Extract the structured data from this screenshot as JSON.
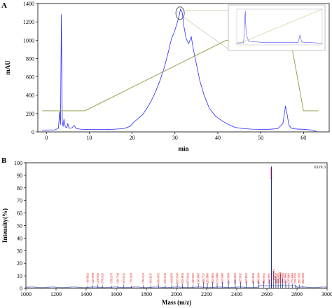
{
  "chart_data": [
    {
      "panel": "A",
      "type": "line",
      "xlabel": "min",
      "ylabel": "mAU",
      "xlim": [
        -2,
        66
      ],
      "ylim": [
        0,
        1400
      ],
      "xticks": [
        0,
        10,
        20,
        30,
        40,
        50,
        60
      ],
      "yticks": [
        0,
        200,
        400,
        600,
        800,
        1000,
        1200,
        1400
      ],
      "grid": false,
      "series": [
        {
          "role": "absorbance",
          "color": "#2a2aff",
          "x": [
            -1,
            2,
            2.8,
            3.1,
            3.3,
            3.5,
            3.7,
            3.9,
            4.1,
            4.4,
            4.8,
            5.0,
            5.3,
            6.0,
            6.5,
            7.0,
            8.0,
            10,
            12,
            14,
            16,
            18,
            19.5,
            20.5,
            21.5,
            22.5,
            23.5,
            24.5,
            25.5,
            26.5,
            27.5,
            28.5,
            29.2,
            29.8,
            30.4,
            31.0,
            31.3,
            31.7,
            32.1,
            32.6,
            33.2,
            33.8,
            34.3,
            35.0,
            35.8,
            36.8,
            38.0,
            39.5,
            41.0,
            42.5,
            44,
            46,
            48,
            50,
            52,
            54,
            55.2,
            55.8,
            56.2,
            56.6,
            57.2,
            58,
            60,
            62,
            62.5,
            63
          ],
          "values": [
            20,
            22,
            40,
            220,
            80,
            1280,
            120,
            60,
            140,
            55,
            45,
            90,
            40,
            45,
            70,
            35,
            30,
            25,
            25,
            25,
            30,
            35,
            60,
            110,
            150,
            190,
            260,
            340,
            440,
            560,
            700,
            880,
            1020,
            1080,
            1170,
            1270,
            1340,
            1300,
            1150,
            1020,
            960,
            1040,
            900,
            740,
            560,
            400,
            260,
            170,
            120,
            80,
            50,
            35,
            30,
            28,
            28,
            35,
            90,
            280,
            190,
            70,
            40,
            32,
            28,
            20,
            10,
            5
          ]
        },
        {
          "role": "gradient",
          "color": "#8c9a3c",
          "x": [
            -1,
            9,
            42,
            57,
            60,
            63.5
          ],
          "values": [
            230,
            230,
            1000,
            1000,
            230,
            230
          ]
        }
      ],
      "annotations": [
        {
          "type": "circle",
          "x": 31.2,
          "y": 1295
        },
        {
          "type": "inset",
          "note": "zoomed chromatogram"
        }
      ]
    },
    {
      "panel": "B",
      "type": "bar",
      "xlabel": "Mass (m/z)",
      "ylabel": "Intensity(%)",
      "xlim": [
        1000,
        3000
      ],
      "ylim": [
        0,
        100
      ],
      "xticks": [
        1000,
        1200,
        1400,
        1600,
        1800,
        2000,
        2200,
        2400,
        2600,
        2800,
        3000
      ],
      "yticks": [
        0,
        10,
        20,
        30,
        40,
        50,
        60,
        70,
        80,
        90,
        100
      ],
      "top_mass_label": "6319.3",
      "grid": false,
      "peaks": [
        {
          "x": 1410,
          "y": 2,
          "label": "1410.8923"
        },
        {
          "x": 1445,
          "y": 2.5,
          "label": "1445.9098"
        },
        {
          "x": 1478,
          "y": 3,
          "label": "1478.9024"
        },
        {
          "x": 1508,
          "y": 2.5,
          "label": "1508.9320"
        },
        {
          "x": 1568,
          "y": 2,
          "label": "1568.9379"
        },
        {
          "x": 1610,
          "y": 2,
          "label": "1610.7011"
        },
        {
          "x": 1650,
          "y": 3,
          "label": "1650.0413"
        },
        {
          "x": 1700,
          "y": 2,
          "label": "1700.9028"
        },
        {
          "x": 1780,
          "y": 2.5,
          "label": "1780.0330"
        },
        {
          "x": 1830,
          "y": 2.5,
          "label": "1830.8147"
        },
        {
          "x": 1880,
          "y": 3.5,
          "label": "1880.4872"
        },
        {
          "x": 1925,
          "y": 2.5,
          "label": "1925.5613"
        },
        {
          "x": 1968,
          "y": 3,
          "label": "1968.6879"
        },
        {
          "x": 2005,
          "y": 4,
          "label": "2005.0541"
        },
        {
          "x": 2040,
          "y": 3.5,
          "label": "2040.8812"
        },
        {
          "x": 2075,
          "y": 4,
          "label": "2075.6044"
        },
        {
          "x": 2110,
          "y": 3,
          "label": "2110.9103"
        },
        {
          "x": 2145,
          "y": 4,
          "label": "2145.8060"
        },
        {
          "x": 2180,
          "y": 5,
          "label": "2180.7337"
        },
        {
          "x": 2205,
          "y": 4.5,
          "label": "2205.8960"
        },
        {
          "x": 2240,
          "y": 5,
          "label": "2240.8804"
        },
        {
          "x": 2270,
          "y": 4,
          "label": "2270.8084"
        },
        {
          "x": 2305,
          "y": 5,
          "label": "2305.9009"
        },
        {
          "x": 2345,
          "y": 5.5,
          "label": "2345.9094"
        },
        {
          "x": 2390,
          "y": 7,
          "label": "2390.6874"
        },
        {
          "x": 2425,
          "y": 5,
          "label": "2425.9017"
        },
        {
          "x": 2465,
          "y": 5,
          "label": "2465.8104"
        },
        {
          "x": 2510,
          "y": 5.5,
          "label": "2510.8810"
        },
        {
          "x": 2545,
          "y": 6,
          "label": "2545.6094"
        },
        {
          "x": 2580,
          "y": 5.5,
          "label": "2580.9032"
        },
        {
          "x": 2615,
          "y": 7,
          "label": "2615.8097"
        },
        {
          "x": 2630,
          "y": 97,
          "label": "2630.6449"
        },
        {
          "x": 2645,
          "y": 14,
          "label": "2645.9214"
        },
        {
          "x": 2660,
          "y": 10,
          "label": "2660.7720"
        },
        {
          "x": 2675,
          "y": 8,
          "label": "2675.9006"
        },
        {
          "x": 2690,
          "y": 12,
          "label": "2690.8821"
        },
        {
          "x": 2705,
          "y": 8,
          "label": "2705.8084"
        },
        {
          "x": 2725,
          "y": 6,
          "label": "2725.8906"
        },
        {
          "x": 2745,
          "y": 4,
          "label": "2745.6804"
        },
        {
          "x": 2770,
          "y": 3.5,
          "label": "2770.8960"
        },
        {
          "x": 2790,
          "y": 3,
          "label": "2790.7423"
        },
        {
          "x": 2815,
          "y": 3,
          "label": "2815.7650"
        },
        {
          "x": 2840,
          "y": 2.5,
          "label": "2840.9810"
        }
      ]
    }
  ],
  "panels": {
    "a": {
      "letter": "A"
    },
    "b": {
      "letter": "B"
    }
  }
}
